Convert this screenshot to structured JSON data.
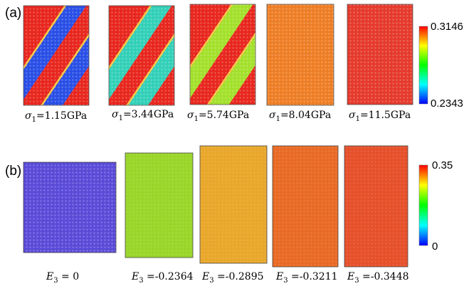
{
  "panel_a": {
    "letter": "(a)",
    "colorbar": {
      "max": "0.3146",
      "min": "0.2343",
      "colors": [
        "#0000ff",
        "#00ffff",
        "#00ff00",
        "#ffff00",
        "#ff0000"
      ]
    },
    "items": [
      {
        "symbol": "σ",
        "sub": "1",
        "value": "=1.15GPa",
        "band_color": "#2a4fe6"
      },
      {
        "symbol": "σ",
        "sub": "1",
        "value": "=3.44GPa",
        "band_color": "#33d0b8"
      },
      {
        "symbol": "σ",
        "sub": "1",
        "value": "=5.74GPa",
        "band_color": "#a3e02b"
      },
      {
        "symbol": "σ",
        "sub": "1",
        "value": "=8.04GPa",
        "band_color": "#f2a022"
      },
      {
        "symbol": "σ",
        "sub": "1",
        "value": "=11.5GPa",
        "band_color": "#e53a2c"
      }
    ]
  },
  "panel_b": {
    "letter": "(b)",
    "colorbar": {
      "max": "0.35",
      "min": "0",
      "colors": [
        "#0000ff",
        "#00ffff",
        "#00ff00",
        "#ffff00",
        "#ff0000"
      ]
    },
    "items": [
      {
        "symbol": "E",
        "sub": "3",
        "value": " = 0",
        "fill": "#5a4bd8"
      },
      {
        "symbol": "E",
        "sub": "3",
        "value": " =-0.2364",
        "fill": "#9ad629"
      },
      {
        "symbol": "E",
        "sub": "3",
        "value": " =-0.2895",
        "fill": "#e9a72b"
      },
      {
        "symbol": "E",
        "sub": "3",
        "value": " =-0.3211",
        "fill": "#e96a25"
      },
      {
        "symbol": "E",
        "sub": "3",
        "value": " =-0.3448",
        "fill": "#e6502a"
      }
    ]
  }
}
